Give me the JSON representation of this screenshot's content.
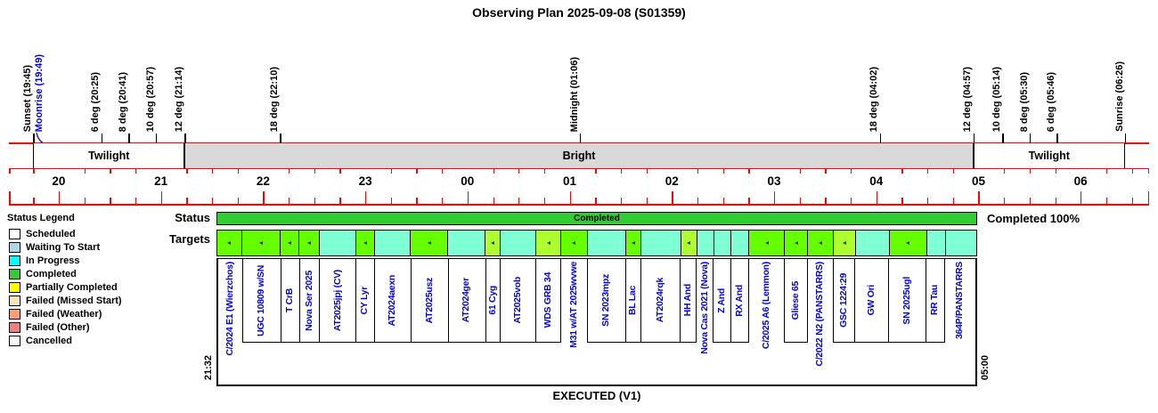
{
  "title": "Observing Plan 2025-09-08 (S01359)",
  "legend": {
    "title": "Status Legend",
    "items": [
      {
        "label": "Scheduled",
        "color": "#ffffff"
      },
      {
        "label": "Waiting To Start",
        "color": "#add8e6"
      },
      {
        "label": "In Progress",
        "color": "#00ffff"
      },
      {
        "label": "Completed",
        "color": "#32cd32"
      },
      {
        "label": "Partially Completed",
        "color": "#ffff00"
      },
      {
        "label": "Failed (Missed Start)",
        "color": "#ffe4b5"
      },
      {
        "label": "Failed (Weather)",
        "color": "#ffa07a"
      },
      {
        "label": "Failed (Other)",
        "color": "#f08080"
      },
      {
        "label": "Cancelled",
        "color": "#fafafa"
      }
    ]
  },
  "status": {
    "row_label": "Status",
    "bar_label": "Completed",
    "summary": "Completed 100%",
    "bar_color": "#32cd32"
  },
  "targets_row_label": "Targets",
  "executed": {
    "label": "EXECUTED (V1)",
    "start": "21:32",
    "end": "05:00"
  },
  "chart_data": {
    "type": "timeline-gantt",
    "axis": {
      "hours": [
        "20",
        "21",
        "22",
        "23",
        "00",
        "01",
        "02",
        "03",
        "04",
        "05",
        "06"
      ],
      "tick_interval_min": 15,
      "axis_color": "#ff0000"
    },
    "sky_markers": [
      {
        "label": "Sunset (19:45)",
        "time": "19:45",
        "color": "#000000"
      },
      {
        "label": "Moonrise (19:49)",
        "time": "19:49",
        "color": "#0000ee"
      },
      {
        "label": "6 deg (20:25)",
        "time": "20:25",
        "color": "#000000"
      },
      {
        "label": "8 deg (20:41)",
        "time": "20:41",
        "color": "#000000"
      },
      {
        "label": "10 deg (20:57)",
        "time": "20:57",
        "color": "#000000"
      },
      {
        "label": "12 deg (21:14)",
        "time": "21:14",
        "color": "#000000"
      },
      {
        "label": "18 deg (22:10)",
        "time": "22:10",
        "color": "#000000"
      },
      {
        "label": "Midnight (01:06)",
        "time": "01:06",
        "color": "#000000"
      },
      {
        "label": "18 deg (04:02)",
        "time": "04:02",
        "color": "#000000"
      },
      {
        "label": "12 deg (04:57)",
        "time": "04:57",
        "color": "#000000"
      },
      {
        "label": "10 deg (05:14)",
        "time": "05:14",
        "color": "#000000"
      },
      {
        "label": "8 deg (05:30)",
        "time": "05:30",
        "color": "#000000"
      },
      {
        "label": "6 deg (05:46)",
        "time": "05:46",
        "color": "#000000"
      },
      {
        "label": "Sunrise (06:26)",
        "time": "06:26",
        "color": "#000000"
      }
    ],
    "bands": [
      {
        "label": "Twilight",
        "start": "19:45",
        "end": "21:14",
        "fill": "#ffffff"
      },
      {
        "label": "Bright",
        "start": "21:14",
        "end": "04:57",
        "fill": "#d9d9d9"
      },
      {
        "label": "Twilight",
        "start": "04:57",
        "end": "06:26",
        "fill": "#ffffff"
      }
    ],
    "executed_block": {
      "start": "21:32",
      "end": "05:00",
      "status": "Completed",
      "percent": 100
    },
    "cell_colors": {
      "green": "#66ff00",
      "aqua": "#7fffd4",
      "yellowgreen": "#adff2f"
    },
    "targets": [
      {
        "name": "C/2024 E1 (Wierzchos)",
        "status": "green",
        "marker": true,
        "span": 28,
        "long": true
      },
      {
        "name": "UGC 10809 w/SN",
        "status": "green",
        "marker": true,
        "span": 43
      },
      {
        "name": "T CrB",
        "status": "green",
        "marker": true,
        "span": 21
      },
      {
        "name": "Nova Ser 2025",
        "status": "green",
        "marker": true,
        "span": 23
      },
      {
        "name": "AT2025jpj (CV)",
        "status": "aqua",
        "marker": false,
        "span": 41
      },
      {
        "name": "CY Lyr",
        "status": "green",
        "marker": true,
        "span": 21
      },
      {
        "name": "AT2024aexn",
        "status": "aqua",
        "marker": false,
        "span": 41
      },
      {
        "name": "AT2025usz",
        "status": "green",
        "marker": true,
        "span": 42
      },
      {
        "name": "AT2024ger",
        "status": "aqua",
        "marker": false,
        "span": 42
      },
      {
        "name": "61 Cyg",
        "status": "yellowgreen",
        "marker": true,
        "span": 17
      },
      {
        "name": "AT2025vob",
        "status": "aqua",
        "marker": false,
        "span": 40
      },
      {
        "name": "WDS GRB 34",
        "status": "yellowgreen",
        "marker": true,
        "span": 28
      },
      {
        "name": "M31 w/AT 2025wvwe",
        "status": "green",
        "marker": true,
        "span": 30,
        "long": true
      },
      {
        "name": "SN 2023mpz",
        "status": "aqua",
        "marker": false,
        "span": 43
      },
      {
        "name": "BL Lac",
        "status": "green",
        "marker": true,
        "span": 17
      },
      {
        "name": "AT2024rqk",
        "status": "aqua",
        "marker": false,
        "span": 45
      },
      {
        "name": "HH And",
        "status": "yellowgreen",
        "marker": true,
        "span": 18
      },
      {
        "name": "Nova Cas 2021 (Nova)",
        "status": "aqua",
        "marker": false,
        "span": 19,
        "long": true
      },
      {
        "name": "Z And",
        "status": "aqua",
        "marker": false,
        "span": 20
      },
      {
        "name": "RX And",
        "status": "aqua",
        "marker": false,
        "span": 20
      },
      {
        "name": "C/2025 A6 (Lemmon)",
        "status": "green",
        "marker": true,
        "span": 40,
        "long": true
      },
      {
        "name": "Gliese 65",
        "status": "green",
        "marker": true,
        "span": 26
      },
      {
        "name": "C/2022 N2 (PANSTARRS)",
        "status": "green",
        "marker": true,
        "span": 29,
        "long": true
      },
      {
        "name": "GSC 1224:29",
        "status": "yellowgreen",
        "marker": true,
        "span": 25
      },
      {
        "name": "GW Ori",
        "status": "aqua",
        "marker": false,
        "span": 38
      },
      {
        "name": "SN 2025ugl",
        "status": "green",
        "marker": true,
        "span": 42
      },
      {
        "name": "RR Tau",
        "status": "aqua",
        "marker": false,
        "span": 21
      },
      {
        "name": "364P/PANSTARRS",
        "status": "aqua",
        "marker": false,
        "span": 34,
        "long": true
      }
    ]
  }
}
